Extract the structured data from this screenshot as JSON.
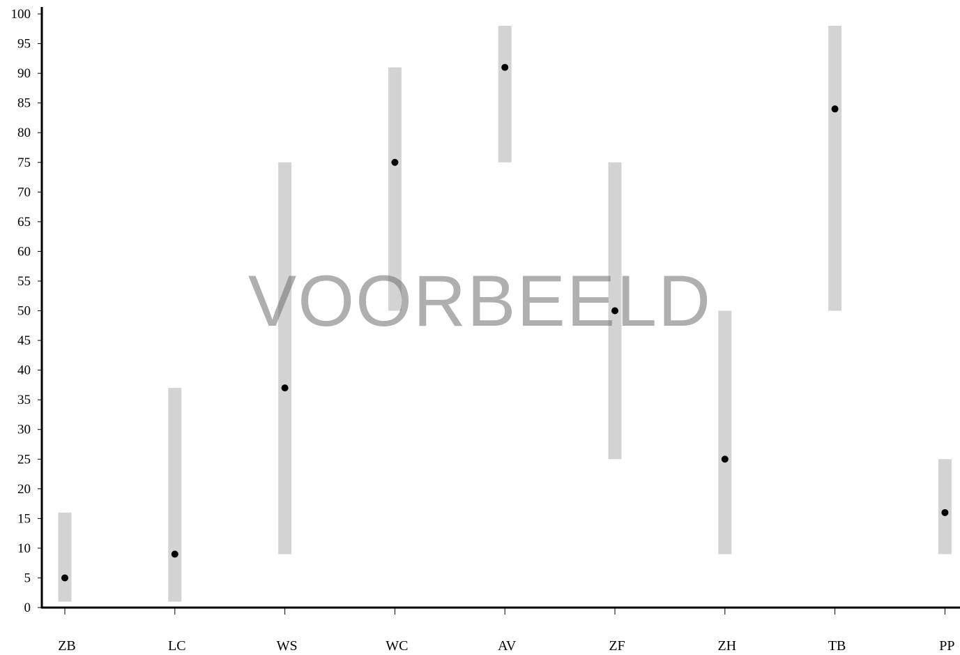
{
  "chart_data": {
    "type": "scatter",
    "categories": [
      "ZB",
      "LC",
      "WS",
      "WC",
      "AV",
      "ZF",
      "ZH",
      "TB",
      "PP"
    ],
    "values": [
      5,
      9,
      37,
      75,
      91,
      50,
      25,
      84,
      16
    ],
    "ranges": [
      [
        1,
        16
      ],
      [
        1,
        37
      ],
      [
        9,
        75
      ],
      [
        50,
        91
      ],
      [
        75,
        98
      ],
      [
        25,
        75
      ],
      [
        9,
        50
      ],
      [
        50,
        98
      ],
      [
        9,
        25
      ]
    ],
    "yticks": [
      "0",
      "5",
      "10",
      "15",
      "20",
      "25",
      "30",
      "35",
      "40",
      "45",
      "50",
      "55",
      "60",
      "65",
      "70",
      "75",
      "80",
      "85",
      "90",
      "95",
      "100"
    ],
    "ylim": [
      0,
      100
    ],
    "grid": false,
    "colors": {
      "range_bar": "#d3d3d3",
      "point": "#000000",
      "axis": "#000000"
    }
  },
  "watermark": "VOORBEELD"
}
